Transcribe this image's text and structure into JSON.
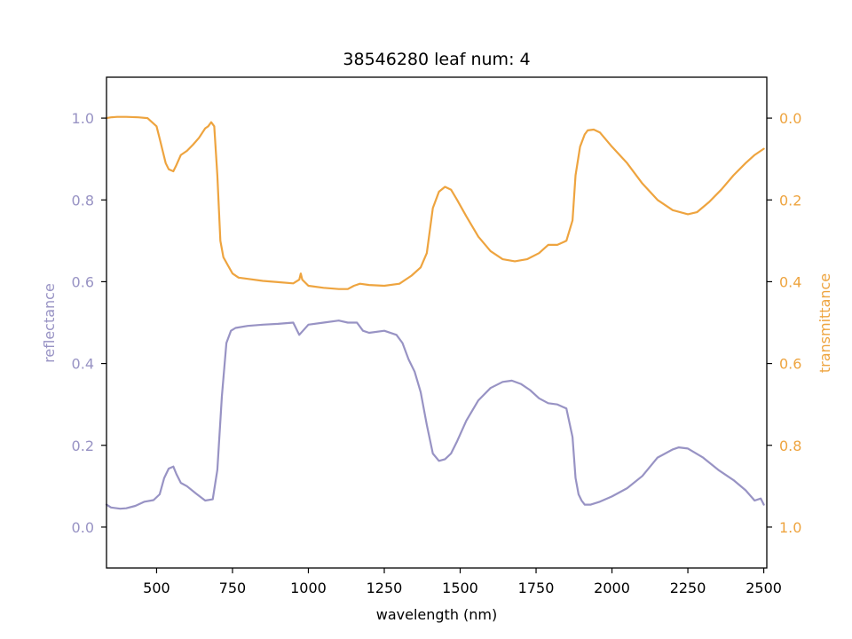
{
  "chart_data": {
    "type": "line",
    "title": "38546280 leaf num: 4",
    "xlabel": "wavelength (nm)",
    "ylabel_left": "reflectance",
    "ylabel_right": "transmittance",
    "xlim": [
      335,
      2510
    ],
    "ylim_left": [
      -0.1,
      1.1
    ],
    "ylim_right": [
      1.1,
      -0.1
    ],
    "right_axis_inverted": true,
    "grid": false,
    "x_ticks": [
      500,
      750,
      1000,
      1250,
      1500,
      1750,
      2000,
      2250,
      2500
    ],
    "y_ticks_left": [
      0.0,
      0.2,
      0.4,
      0.6,
      0.8,
      1.0
    ],
    "y_ticks_right": [
      0.0,
      0.2,
      0.4,
      0.6,
      0.8,
      1.0
    ],
    "colors": {
      "reflectance": "#9893c4",
      "transmittance": "#eea43f",
      "axis": "#000000"
    },
    "series": [
      {
        "key": "reflectance",
        "axis": "left",
        "x": [
          335,
          350,
          380,
          400,
          430,
          460,
          490,
          510,
          525,
          540,
          555,
          565,
          580,
          600,
          630,
          660,
          685,
          700,
          715,
          730,
          745,
          760,
          800,
          850,
          900,
          950,
          970,
          1000,
          1050,
          1100,
          1130,
          1160,
          1180,
          1200,
          1250,
          1290,
          1310,
          1330,
          1350,
          1370,
          1390,
          1410,
          1430,
          1450,
          1470,
          1490,
          1520,
          1560,
          1600,
          1640,
          1670,
          1700,
          1730,
          1760,
          1790,
          1820,
          1850,
          1870,
          1880,
          1890,
          1900,
          1910,
          1930,
          1960,
          2000,
          2050,
          2100,
          2150,
          2200,
          2220,
          2250,
          2300,
          2350,
          2400,
          2440,
          2470,
          2490,
          2500
        ],
        "y": [
          0.055,
          0.048,
          0.045,
          0.046,
          0.052,
          0.062,
          0.066,
          0.08,
          0.12,
          0.143,
          0.148,
          0.13,
          0.108,
          0.1,
          0.082,
          0.065,
          0.068,
          0.14,
          0.32,
          0.45,
          0.48,
          0.487,
          0.492,
          0.495,
          0.497,
          0.5,
          0.47,
          0.495,
          0.5,
          0.505,
          0.5,
          0.5,
          0.48,
          0.475,
          0.48,
          0.47,
          0.45,
          0.41,
          0.38,
          0.33,
          0.25,
          0.18,
          0.162,
          0.166,
          0.18,
          0.21,
          0.26,
          0.31,
          0.34,
          0.355,
          0.358,
          0.35,
          0.335,
          0.315,
          0.303,
          0.3,
          0.29,
          0.22,
          0.12,
          0.08,
          0.065,
          0.055,
          0.055,
          0.062,
          0.075,
          0.095,
          0.125,
          0.17,
          0.19,
          0.195,
          0.192,
          0.17,
          0.14,
          0.115,
          0.09,
          0.065,
          0.07,
          0.055
        ]
      },
      {
        "key": "transmittance",
        "axis": "right",
        "x": [
          335,
          350,
          370,
          400,
          440,
          470,
          500,
          510,
          520,
          530,
          540,
          555,
          565,
          580,
          600,
          620,
          640,
          660,
          670,
          680,
          690,
          700,
          710,
          720,
          735,
          750,
          770,
          800,
          850,
          900,
          950,
          970,
          975,
          980,
          1000,
          1050,
          1100,
          1130,
          1150,
          1170,
          1200,
          1250,
          1300,
          1340,
          1370,
          1390,
          1410,
          1430,
          1450,
          1470,
          1490,
          1520,
          1560,
          1600,
          1640,
          1680,
          1720,
          1760,
          1790,
          1820,
          1850,
          1870,
          1880,
          1895,
          1910,
          1920,
          1940,
          1960,
          2000,
          2050,
          2100,
          2150,
          2200,
          2250,
          2280,
          2320,
          2360,
          2400,
          2440,
          2470,
          2500
        ],
        "y": [
          0.0,
          -0.002,
          -0.003,
          -0.003,
          -0.002,
          0.0,
          0.02,
          0.05,
          0.08,
          0.11,
          0.125,
          0.13,
          0.115,
          0.09,
          0.08,
          0.065,
          0.048,
          0.025,
          0.02,
          0.01,
          0.02,
          0.14,
          0.3,
          0.34,
          0.36,
          0.38,
          0.39,
          0.393,
          0.398,
          0.401,
          0.404,
          0.395,
          0.38,
          0.395,
          0.41,
          0.415,
          0.418,
          0.418,
          0.41,
          0.405,
          0.408,
          0.41,
          0.405,
          0.385,
          0.365,
          0.33,
          0.22,
          0.18,
          0.168,
          0.175,
          0.2,
          0.24,
          0.29,
          0.325,
          0.345,
          0.35,
          0.345,
          0.33,
          0.31,
          0.31,
          0.3,
          0.25,
          0.14,
          0.07,
          0.04,
          0.03,
          0.028,
          0.035,
          0.07,
          0.11,
          0.16,
          0.2,
          0.225,
          0.235,
          0.23,
          0.205,
          0.175,
          0.14,
          0.11,
          0.09,
          0.075
        ]
      }
    ]
  }
}
